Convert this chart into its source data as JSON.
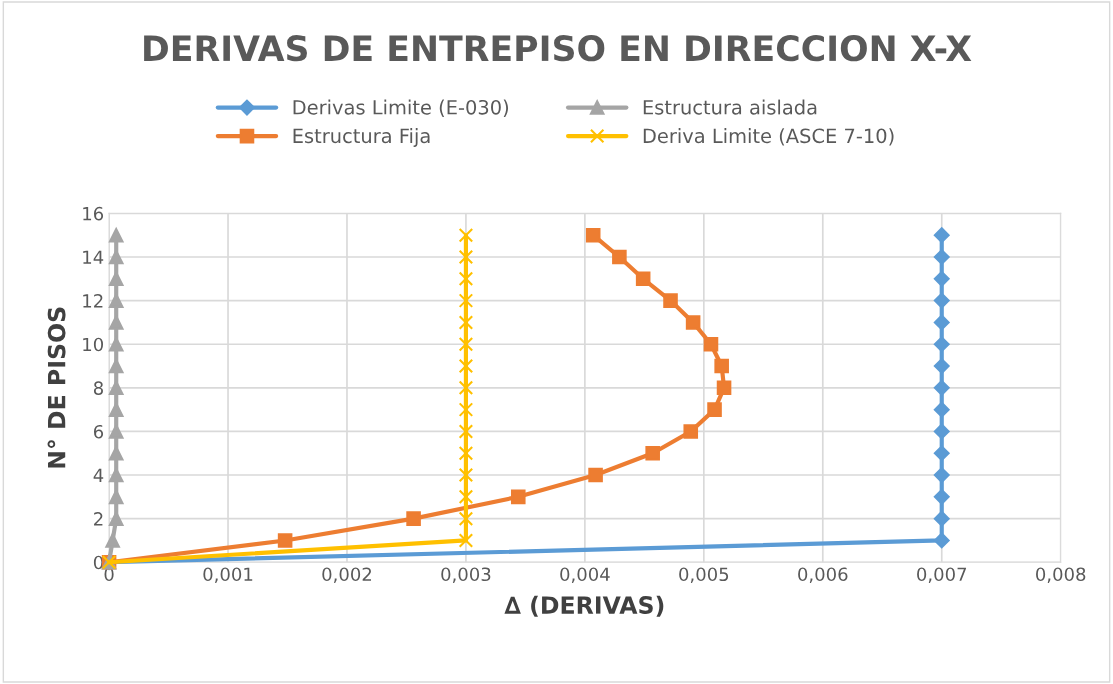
{
  "chart_data": {
    "type": "line",
    "title": "DERIVAS DE ENTREPISO EN DIRECCION X-X",
    "xlabel": "∆ (DERIVAS)",
    "ylabel": "N° DE PISOS",
    "xlim": [
      0,
      0.008
    ],
    "xticks": [
      0,
      {
        "value": 0.001,
        "label": "0,001"
      },
      {
        "value": 0.002,
        "label": "0,002"
      },
      {
        "value": 0.003,
        "label": "0,003"
      },
      {
        "value": 0.004,
        "label": "0,004"
      },
      {
        "value": 0.005,
        "label": "0,005"
      },
      {
        "value": 0.006,
        "label": "0,006"
      },
      {
        "value": 0.007,
        "label": "0,007"
      },
      {
        "value": 0.008,
        "label": "0,008"
      }
    ],
    "ylim": [
      0,
      16
    ],
    "yticks": [
      0,
      2,
      4,
      6,
      8,
      10,
      12,
      14,
      16
    ],
    "grid": true,
    "legend": "top",
    "series": [
      {
        "name": "Derivas Limite (E-030)",
        "color": "#5b9bd5",
        "marker": "diamond",
        "x": [
          0,
          0.007,
          0.007,
          0.007,
          0.007,
          0.007,
          0.007,
          0.007,
          0.007,
          0.007,
          0.007,
          0.007,
          0.007,
          0.007,
          0.007,
          0.007
        ],
        "values": [
          0,
          1,
          2,
          3,
          4,
          5,
          6,
          7,
          8,
          9,
          10,
          11,
          12,
          13,
          14,
          15
        ]
      },
      {
        "name": "Estructura Fija",
        "color": "#ed7d31",
        "marker": "square",
        "x": [
          0,
          0.00148,
          0.00256,
          0.00344,
          0.00409,
          0.00457,
          0.00489,
          0.00509,
          0.00517,
          0.00515,
          0.00506,
          0.00491,
          0.00472,
          0.00449,
          0.00429,
          0.00407
        ],
        "values": [
          0,
          1,
          2,
          3,
          4,
          5,
          6,
          7,
          8,
          9,
          10,
          11,
          12,
          13,
          14,
          15
        ]
      },
      {
        "name": "Estructura aislada",
        "color": "#a5a5a5",
        "marker": "triangle",
        "x": [
          0,
          3e-05,
          6e-05,
          6e-05,
          6e-05,
          6e-05,
          6e-05,
          6e-05,
          6e-05,
          6e-05,
          6e-05,
          6e-05,
          6e-05,
          6e-05,
          6e-05,
          6e-05
        ],
        "values": [
          0,
          1,
          2,
          3,
          4,
          5,
          6,
          7,
          8,
          9,
          10,
          11,
          12,
          13,
          14,
          15
        ]
      },
      {
        "name": "Deriva Limite (ASCE 7-10)",
        "color": "#ffc000",
        "marker": "cross",
        "x": [
          0,
          0.003,
          0.003,
          0.003,
          0.003,
          0.003,
          0.003,
          0.003,
          0.003,
          0.003,
          0.003,
          0.003,
          0.003,
          0.003,
          0.003,
          0.003
        ],
        "values": [
          0,
          1,
          2,
          3,
          4,
          5,
          6,
          7,
          8,
          9,
          10,
          11,
          12,
          13,
          14,
          15
        ]
      }
    ]
  }
}
